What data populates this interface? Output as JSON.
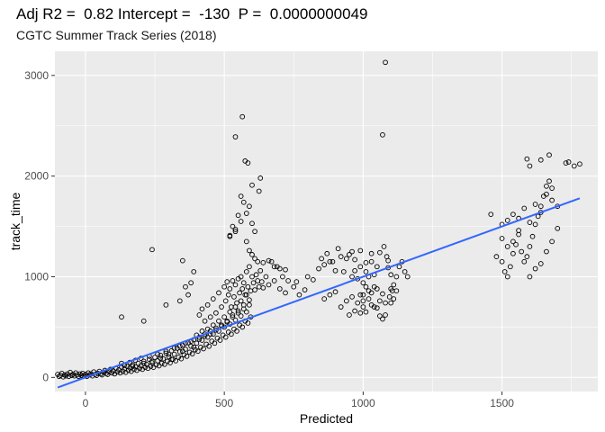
{
  "chart_data": {
    "type": "scatter",
    "title": "Adj R2 =  0.82 Intercept =  -130  P =  0.0000000049",
    "subtitle": "CGTC Summer Track Series (2018)",
    "xlabel": "Predicted",
    "ylabel": "track_time",
    "xlim": [
      -110,
      1845
    ],
    "ylim": [
      -140,
      3240
    ],
    "x_ticks": [
      0,
      500,
      1000,
      1500
    ],
    "y_ticks": [
      0,
      1000,
      2000,
      3000
    ],
    "grid": true,
    "colors": {
      "panel": "#ebebeb",
      "grid": "#ffffff",
      "points": "#000000",
      "fit_line": "#3366ff"
    },
    "fit_line": {
      "x": [
        -100,
        1780
      ],
      "y": [
        -100,
        1780
      ]
    },
    "points": [
      [
        -100,
        30
      ],
      [
        -95,
        10
      ],
      [
        -90,
        20
      ],
      [
        -85,
        40
      ],
      [
        -80,
        5
      ],
      [
        -75,
        25
      ],
      [
        -70,
        15
      ],
      [
        -65,
        35
      ],
      [
        -60,
        10
      ],
      [
        -55,
        50
      ],
      [
        -50,
        20
      ],
      [
        -45,
        30
      ],
      [
        -40,
        15
      ],
      [
        -35,
        45
      ],
      [
        -30,
        25
      ],
      [
        -25,
        10
      ],
      [
        -20,
        35
      ],
      [
        -15,
        20
      ],
      [
        -10,
        40
      ],
      [
        -5,
        15
      ],
      [
        0,
        30
      ],
      [
        5,
        10
      ],
      [
        10,
        45
      ],
      [
        15,
        25
      ],
      [
        20,
        35
      ],
      [
        25,
        15
      ],
      [
        30,
        55
      ],
      [
        35,
        30
      ],
      [
        40,
        20
      ],
      [
        45,
        40
      ],
      [
        50,
        60
      ],
      [
        55,
        35
      ],
      [
        60,
        25
      ],
      [
        65,
        50
      ],
      [
        70,
        70
      ],
      [
        75,
        40
      ],
      [
        80,
        30
      ],
      [
        85,
        55
      ],
      [
        90,
        80
      ],
      [
        95,
        45
      ],
      [
        100,
        65
      ],
      [
        105,
        35
      ],
      [
        110,
        90
      ],
      [
        115,
        55
      ],
      [
        120,
        75
      ],
      [
        125,
        45
      ],
      [
        130,
        100
      ],
      [
        135,
        60
      ],
      [
        140,
        85
      ],
      [
        145,
        50
      ],
      [
        150,
        110
      ],
      [
        155,
        70
      ],
      [
        160,
        95
      ],
      [
        165,
        60
      ],
      [
        170,
        125
      ],
      [
        175,
        80
      ],
      [
        180,
        105
      ],
      [
        185,
        70
      ],
      [
        190,
        140
      ],
      [
        195,
        90
      ],
      [
        200,
        115
      ],
      [
        205,
        80
      ],
      [
        210,
        160
      ],
      [
        215,
        100
      ],
      [
        220,
        130
      ],
      [
        225,
        90
      ],
      [
        230,
        180
      ],
      [
        235,
        110
      ],
      [
        240,
        145
      ],
      [
        245,
        100
      ],
      [
        250,
        200
      ],
      [
        255,
        125
      ],
      [
        260,
        165
      ],
      [
        265,
        115
      ],
      [
        270,
        220
      ],
      [
        275,
        140
      ],
      [
        280,
        185
      ],
      [
        285,
        130
      ],
      [
        290,
        240
      ],
      [
        295,
        160
      ],
      [
        300,
        205
      ],
      [
        305,
        145
      ],
      [
        310,
        265
      ],
      [
        315,
        180
      ],
      [
        320,
        230
      ],
      [
        325,
        165
      ],
      [
        330,
        290
      ],
      [
        335,
        200
      ],
      [
        340,
        255
      ],
      [
        345,
        185
      ],
      [
        350,
        320
      ],
      [
        355,
        225
      ],
      [
        360,
        280
      ],
      [
        365,
        210
      ],
      [
        370,
        345
      ],
      [
        375,
        250
      ],
      [
        380,
        310
      ],
      [
        385,
        235
      ],
      [
        390,
        375
      ],
      [
        395,
        275
      ],
      [
        400,
        340
      ],
      [
        405,
        260
      ],
      [
        410,
        400
      ],
      [
        415,
        300
      ],
      [
        420,
        370
      ],
      [
        425,
        285
      ],
      [
        430,
        430
      ],
      [
        435,
        330
      ],
      [
        440,
        400
      ],
      [
        445,
        310
      ],
      [
        450,
        460
      ],
      [
        455,
        360
      ],
      [
        460,
        430
      ],
      [
        465,
        340
      ],
      [
        470,
        490
      ],
      [
        475,
        390
      ],
      [
        480,
        460
      ],
      [
        485,
        370
      ],
      [
        490,
        520
      ],
      [
        495,
        420
      ],
      [
        500,
        500
      ],
      [
        505,
        400
      ],
      [
        510,
        560
      ],
      [
        515,
        450
      ],
      [
        520,
        530
      ],
      [
        525,
        430
      ],
      [
        530,
        600
      ],
      [
        535,
        480
      ],
      [
        540,
        570
      ],
      [
        545,
        460
      ],
      [
        550,
        640
      ],
      [
        555,
        520
      ],
      [
        560,
        610
      ],
      [
        565,
        500
      ],
      [
        570,
        680
      ],
      [
        575,
        560
      ],
      [
        580,
        650
      ],
      [
        585,
        540
      ],
      [
        590,
        720
      ],
      [
        595,
        600
      ],
      [
        130,
        140
      ],
      [
        140,
        120
      ],
      [
        160,
        150
      ],
      [
        170,
        110
      ],
      [
        180,
        170
      ],
      [
        200,
        190
      ],
      [
        210,
        140
      ],
      [
        230,
        210
      ],
      [
        240,
        160
      ],
      [
        260,
        230
      ],
      [
        270,
        190
      ],
      [
        290,
        260
      ],
      [
        300,
        230
      ],
      [
        310,
        180
      ],
      [
        320,
        290
      ],
      [
        340,
        310
      ],
      [
        350,
        260
      ],
      [
        360,
        340
      ],
      [
        380,
        360
      ],
      [
        390,
        300
      ],
      [
        400,
        420
      ],
      [
        410,
        380
      ],
      [
        420,
        460
      ],
      [
        430,
        410
      ],
      [
        440,
        480
      ],
      [
        450,
        430
      ],
      [
        460,
        520
      ],
      [
        470,
        470
      ],
      [
        480,
        560
      ],
      [
        490,
        510
      ],
      [
        500,
        600
      ],
      [
        510,
        550
      ],
      [
        520,
        650
      ],
      [
        530,
        620
      ],
      [
        540,
        700
      ],
      [
        550,
        660
      ],
      [
        560,
        760
      ],
      [
        570,
        720
      ],
      [
        580,
        820
      ],
      [
        590,
        770
      ],
      [
        410,
        620
      ],
      [
        420,
        680
      ],
      [
        430,
        560
      ],
      [
        440,
        720
      ],
      [
        450,
        600
      ],
      [
        460,
        780
      ],
      [
        470,
        640
      ],
      [
        480,
        840
      ],
      [
        490,
        700
      ],
      [
        500,
        900
      ],
      [
        505,
        760
      ],
      [
        510,
        950
      ],
      [
        515,
        820
      ],
      [
        520,
        880
      ],
      [
        525,
        700
      ],
      [
        530,
        960
      ],
      [
        535,
        800
      ],
      [
        540,
        920
      ],
      [
        545,
        740
      ],
      [
        550,
        980
      ],
      [
        555,
        840
      ],
      [
        560,
        1000
      ],
      [
        565,
        880
      ],
      [
        570,
        940
      ],
      [
        575,
        820
      ],
      [
        580,
        1050
      ],
      [
        585,
        900
      ],
      [
        590,
        1100
      ],
      [
        595,
        860
      ],
      [
        600,
        1000
      ],
      [
        605,
        940
      ],
      [
        610,
        870
      ],
      [
        615,
        1020
      ],
      [
        620,
        960
      ],
      [
        625,
        900
      ],
      [
        630,
        1060
      ],
      [
        635,
        950
      ],
      [
        640,
        890
      ],
      [
        650,
        1000
      ],
      [
        660,
        920
      ],
      [
        670,
        1150
      ],
      [
        680,
        960
      ],
      [
        690,
        1100
      ],
      [
        700,
        880
      ],
      [
        710,
        1000
      ],
      [
        720,
        840
      ],
      [
        730,
        960
      ],
      [
        750,
        900
      ],
      [
        770,
        820
      ],
      [
        790,
        870
      ],
      [
        360,
        900
      ],
      [
        380,
        940
      ],
      [
        390,
        1050
      ],
      [
        350,
        1160
      ],
      [
        240,
        1270
      ],
      [
        130,
        600
      ],
      [
        210,
        560
      ],
      [
        290,
        720
      ],
      [
        340,
        760
      ],
      [
        370,
        820
      ],
      [
        520,
        1400
      ],
      [
        540,
        1450
      ],
      [
        560,
        1550
      ],
      [
        570,
        1740
      ],
      [
        580,
        1630
      ],
      [
        600,
        1530
      ],
      [
        610,
        1450
      ],
      [
        540,
        1470
      ],
      [
        520,
        1410
      ],
      [
        530,
        1500
      ],
      [
        540,
        2390
      ],
      [
        565,
        2590
      ],
      [
        575,
        2150
      ],
      [
        585,
        2130
      ],
      [
        590,
        1700
      ],
      [
        600,
        1910
      ],
      [
        625,
        1850
      ],
      [
        630,
        1980
      ],
      [
        550,
        1610
      ],
      [
        560,
        1800
      ],
      [
        580,
        1350
      ],
      [
        590,
        1260
      ],
      [
        600,
        1220
      ],
      [
        610,
        1180
      ],
      [
        620,
        1150
      ],
      [
        640,
        1140
      ],
      [
        660,
        1160
      ],
      [
        680,
        1100
      ],
      [
        700,
        1080
      ],
      [
        720,
        1070
      ],
      [
        760,
        950
      ],
      [
        800,
        1000
      ],
      [
        820,
        970
      ],
      [
        840,
        1080
      ],
      [
        860,
        1120
      ],
      [
        880,
        1150
      ],
      [
        900,
        1060
      ],
      [
        920,
        1200
      ],
      [
        940,
        1180
      ],
      [
        960,
        1250
      ],
      [
        860,
        780
      ],
      [
        880,
        820
      ],
      [
        900,
        850
      ],
      [
        920,
        700
      ],
      [
        940,
        760
      ],
      [
        960,
        800
      ],
      [
        980,
        740
      ],
      [
        1000,
        820
      ],
      [
        1020,
        860
      ],
      [
        1040,
        900
      ],
      [
        850,
        1180
      ],
      [
        870,
        1230
      ],
      [
        890,
        1150
      ],
      [
        910,
        1280
      ],
      [
        930,
        1050
      ],
      [
        950,
        1220
      ],
      [
        970,
        1170
      ],
      [
        990,
        1260
      ],
      [
        1010,
        1140
      ],
      [
        1030,
        1230
      ],
      [
        960,
        1000
      ],
      [
        970,
        1060
      ],
      [
        980,
        980
      ],
      [
        990,
        1100
      ],
      [
        1000,
        940
      ],
      [
        1010,
        1050
      ],
      [
        1020,
        1000
      ],
      [
        1030,
        1150
      ],
      [
        1040,
        1020
      ],
      [
        1050,
        1100
      ],
      [
        990,
        820
      ],
      [
        1000,
        760
      ],
      [
        1010,
        900
      ],
      [
        1020,
        780
      ],
      [
        1030,
        840
      ],
      [
        1040,
        700
      ],
      [
        1050,
        880
      ],
      [
        1060,
        760
      ],
      [
        1070,
        830
      ],
      [
        1080,
        740
      ],
      [
        950,
        620
      ],
      [
        970,
        660
      ],
      [
        990,
        640
      ],
      [
        1000,
        700
      ],
      [
        1010,
        650
      ],
      [
        1030,
        720
      ],
      [
        1050,
        690
      ],
      [
        1060,
        610
      ],
      [
        1070,
        580
      ],
      [
        1080,
        620
      ],
      [
        1090,
        1160
      ],
      [
        1100,
        1020
      ],
      [
        1110,
        920
      ],
      [
        1120,
        1000
      ],
      [
        1130,
        1100
      ],
      [
        1140,
        1150
      ],
      [
        1150,
        1050
      ],
      [
        1160,
        1000
      ],
      [
        1100,
        880
      ],
      [
        1120,
        860
      ],
      [
        1080,
        3130
      ],
      [
        1070,
        2410
      ],
      [
        1060,
        1240
      ],
      [
        1075,
        1300
      ],
      [
        1085,
        1200
      ],
      [
        1090,
        1090
      ],
      [
        1095,
        800
      ],
      [
        1100,
        740
      ],
      [
        1105,
        860
      ],
      [
        1110,
        780
      ],
      [
        1460,
        1620
      ],
      [
        1480,
        1200
      ],
      [
        1500,
        1150
      ],
      [
        1510,
        1050
      ],
      [
        1520,
        1000
      ],
      [
        1530,
        1100
      ],
      [
        1540,
        1230
      ],
      [
        1550,
        1320
      ],
      [
        1560,
        1420
      ],
      [
        1570,
        1250
      ],
      [
        1580,
        1150
      ],
      [
        1590,
        1200
      ],
      [
        1600,
        1300
      ],
      [
        1610,
        1400
      ],
      [
        1620,
        1520
      ],
      [
        1630,
        1600
      ],
      [
        1640,
        1700
      ],
      [
        1650,
        1800
      ],
      [
        1660,
        1900
      ],
      [
        1670,
        1950
      ],
      [
        1500,
        1520
      ],
      [
        1520,
        1560
      ],
      [
        1540,
        1620
      ],
      [
        1560,
        1580
      ],
      [
        1580,
        1680
      ],
      [
        1600,
        1540
      ],
      [
        1620,
        1720
      ],
      [
        1640,
        1640
      ],
      [
        1660,
        1820
      ],
      [
        1680,
        1760
      ],
      [
        1590,
        2170
      ],
      [
        1600,
        2100
      ],
      [
        1640,
        2160
      ],
      [
        1670,
        2210
      ],
      [
        1730,
        2130
      ],
      [
        1740,
        2140
      ],
      [
        1760,
        2100
      ],
      [
        1780,
        2120
      ],
      [
        1680,
        1880
      ],
      [
        1700,
        1700
      ],
      [
        1500,
        1380
      ],
      [
        1520,
        1300
      ],
      [
        1540,
        1350
      ],
      [
        1560,
        1460
      ],
      [
        1600,
        1000
      ],
      [
        1620,
        1080
      ],
      [
        1640,
        1130
      ],
      [
        1660,
        1250
      ],
      [
        1680,
        1350
      ],
      [
        1700,
        1480
      ]
    ]
  }
}
